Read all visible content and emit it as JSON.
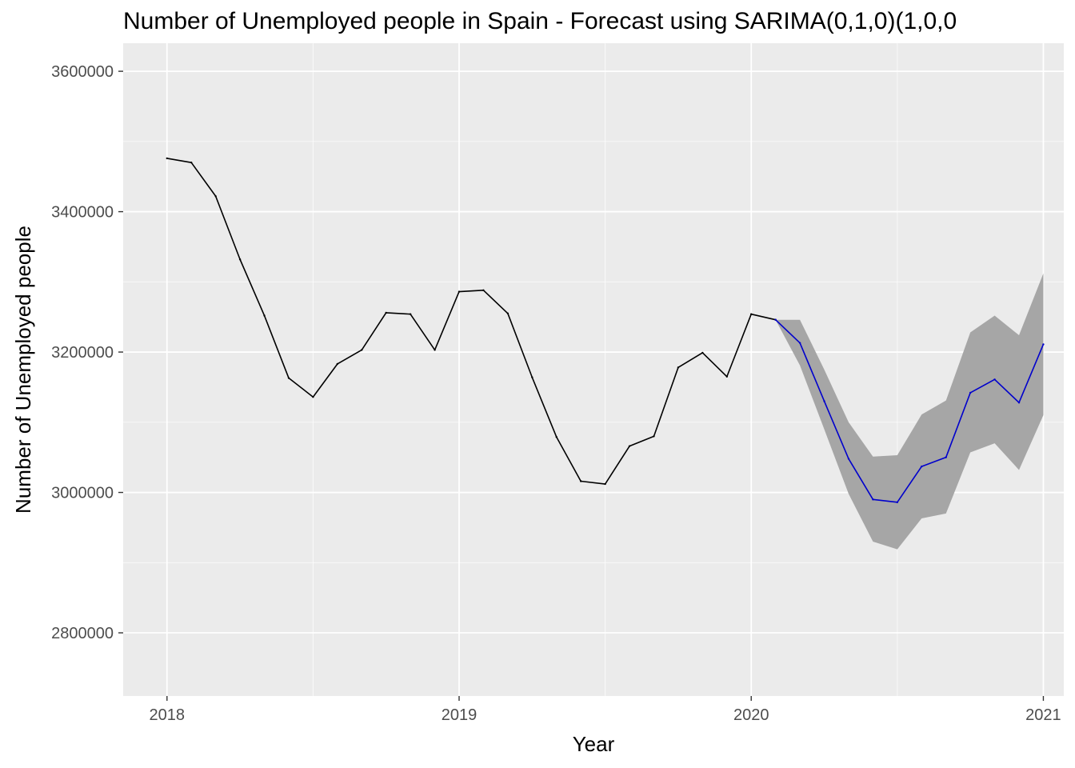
{
  "chart_data": {
    "type": "line",
    "title": "Number of Unemployed people in Spain - Forecast using SARIMA(0,1,0)(1,0,0",
    "xlabel": "Year",
    "ylabel": "Number of Unemployed people",
    "xlim": [
      2017.85,
      2021.07
    ],
    "ylim": [
      2710000,
      3640000
    ],
    "x_ticks": [
      2018,
      2019,
      2020,
      2021
    ],
    "x_tick_labels": [
      "2018",
      "2019",
      "2020",
      "2021"
    ],
    "y_ticks": [
      2800000,
      3000000,
      3200000,
      3400000,
      3600000
    ],
    "y_tick_labels": [
      "2800000",
      "3000000",
      "3200000",
      "3400000",
      "3600000"
    ],
    "grid": true,
    "colors": {
      "panel_background": "#ebebeb",
      "grid": "#ffffff",
      "actual_line": "#000000",
      "forecast_line": "#0000cc",
      "interval_band": "#a6a6a6"
    },
    "series": [
      {
        "role": "actual",
        "x": [
          2018.0,
          2018.0833,
          2018.1667,
          2018.25,
          2018.3333,
          2018.4167,
          2018.5,
          2018.5833,
          2018.6667,
          2018.75,
          2018.8333,
          2018.9167,
          2019.0,
          2019.0833,
          2019.1667,
          2019.25,
          2019.3333,
          2019.4167,
          2019.5,
          2019.5833,
          2019.6667,
          2019.75,
          2019.8333,
          2019.9167,
          2020.0,
          2020.0833
        ],
        "values": [
          3476000,
          3470000,
          3422000,
          3332000,
          3252000,
          3163000,
          3136000,
          3183000,
          3203000,
          3256000,
          3254000,
          3203000,
          3286000,
          3288000,
          3255000,
          3164000,
          3079000,
          3016000,
          3012000,
          3066000,
          3080000,
          3178000,
          3199000,
          3165000,
          3254000,
          3246000
        ]
      },
      {
        "role": "forecast",
        "x": [
          2020.0833,
          2020.1667,
          2020.25,
          2020.3333,
          2020.4167,
          2020.5,
          2020.5833,
          2020.6667,
          2020.75,
          2020.8333,
          2020.9167,
          2021.0
        ],
        "values": [
          3246000,
          3213000,
          3130000,
          3048000,
          2990000,
          2986000,
          3037000,
          3050000,
          3142000,
          3161000,
          3128000,
          3211000
        ],
        "lower": [
          3246000,
          3181000,
          3090000,
          2998000,
          2930000,
          2919000,
          2963000,
          2970000,
          3057000,
          3070000,
          3032000,
          3110000
        ],
        "upper": [
          3246000,
          3246000,
          3175000,
          3100000,
          3051000,
          3053000,
          3111000,
          3131000,
          3228000,
          3252000,
          3224000,
          3312000
        ]
      }
    ]
  }
}
